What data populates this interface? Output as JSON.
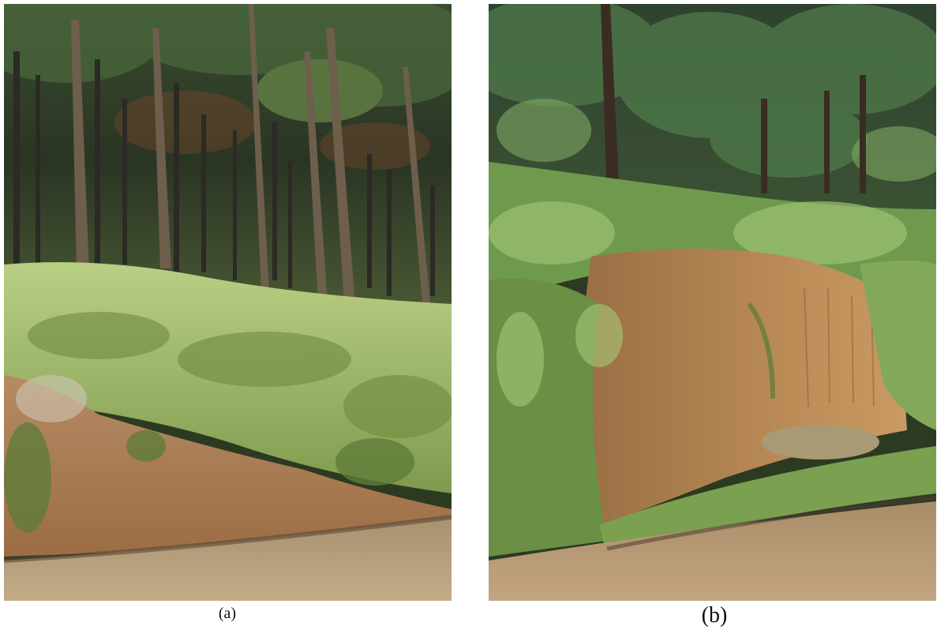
{
  "panels": [
    {
      "id": "a",
      "caption": "(a)"
    },
    {
      "id": "b",
      "caption": "(b)"
    }
  ],
  "colors": {
    "forest_dark": "#1e2a1a",
    "pine_green": "#3c5a32",
    "fern_green": "#9bb86a",
    "soil": "#b98a5a",
    "road": "#b9a27f"
  }
}
